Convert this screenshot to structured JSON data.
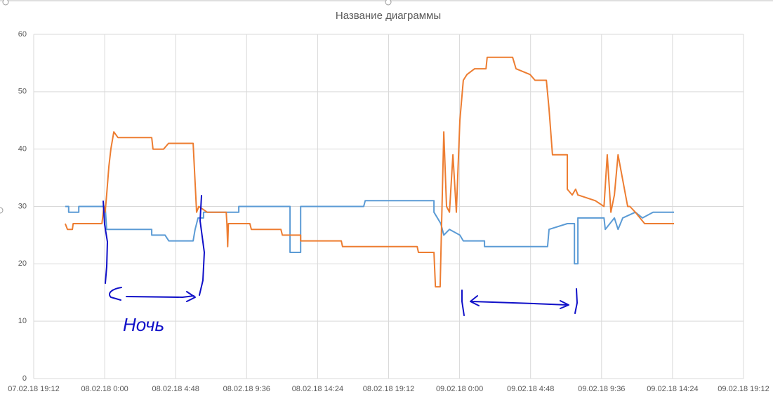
{
  "chart_data": {
    "type": "line",
    "title": "Название диаграммы",
    "xlim": [
      "07.02.18 19:12",
      "09.02.18 19:12"
    ],
    "xticks": [
      "07.02.18 19:12",
      "08.02.18 0:00",
      "08.02.18 4:48",
      "08.02.18 9:36",
      "08.02.18 14:24",
      "08.02.18 19:12",
      "09.02.18 0:00",
      "09.02.18 4:48",
      "09.02.18 9:36",
      "09.02.18 14:24",
      "09.02.18 19:12"
    ],
    "ylim": [
      0,
      60
    ],
    "yticks": [
      0,
      10,
      20,
      30,
      40,
      50,
      60
    ],
    "grid": true,
    "annotations": [
      "Ночь"
    ],
    "series": [
      {
        "color": "#5b9bd5",
        "x": [
          "07.02.18 21:20",
          "07.02.18 21:34",
          "07.02.18 21:34",
          "07.02.18 22:15",
          "07.02.18 22:15",
          "08.02.18 0:02",
          "08.02.18 0:08",
          "08.02.18 3:11",
          "08.02.18 3:11",
          "08.02.18 4:05",
          "08.02.18 4:20",
          "08.02.18 5:59",
          "08.02.18 6:07",
          "08.02.18 6:19",
          "08.02.18 6:41",
          "08.02.18 6:41",
          "08.02.18 9:04",
          "08.02.18 9:04",
          "08.02.18 12:32",
          "08.02.18 12:32",
          "08.02.18 13:15",
          "08.02.18 13:15",
          "08.02.18 17:31",
          "08.02.18 17:37",
          "08.02.18 22:16",
          "08.02.18 22:16",
          "08.02.18 22:44",
          "08.02.18 22:56",
          "08.02.18 23:19",
          "09.02.18 0:01",
          "09.02.18 0:15",
          "09.02.18 1:41",
          "09.02.18 1:41",
          "09.02.18 5:57",
          "09.02.18 6:03",
          "09.02.18 7:17",
          "09.02.18 7:46",
          "09.02.18 7:46",
          "09.02.18 8:00",
          "09.02.18 8:00",
          "09.02.18 9:46",
          "09.02.18 9:51",
          "09.02.18 10:28",
          "09.02.18 10:43",
          "09.02.18 11:02",
          "09.02.18 11:53",
          "09.02.18 12:22",
          "09.02.18 13:05",
          "09.02.18 14:30"
        ],
        "values": [
          30,
          30,
          29,
          29,
          30,
          30,
          26,
          26,
          25,
          25,
          24,
          24,
          26,
          28,
          28,
          29,
          29,
          30,
          30,
          22,
          22,
          30,
          30,
          31,
          31,
          29,
          27,
          25,
          26,
          25,
          24,
          24,
          23,
          23,
          26,
          27,
          27,
          20,
          20,
          28,
          28,
          26,
          28,
          26,
          28,
          29,
          28,
          29,
          29
        ]
      },
      {
        "color": "#ed7d31",
        "x": [
          "07.02.18 21:20",
          "07.02.18 21:29",
          "07.02.18 21:49",
          "07.02.18 21:52",
          "07.02.18 23:49",
          "07.02.18 23:57",
          "08.02.18 0:02",
          "08.02.18 0:08",
          "08.02.18 0:17",
          "08.02.18 0:25",
          "08.02.18 0:37",
          "08.02.18 0:54",
          "08.02.18 3:11",
          "08.02.18 3:16",
          "08.02.18 3:59",
          "08.02.18 4:19",
          "08.02.18 5:59",
          "08.02.18 6:13",
          "08.02.18 6:22",
          "08.02.18 6:56",
          "08.02.18 8:13",
          "08.02.18 8:16",
          "08.02.18 8:19",
          "08.02.18 8:22",
          "08.02.18 9:49",
          "08.02.18 9:55",
          "08.02.18 11:55",
          "08.02.18 12:01",
          "08.02.18 13:15",
          "08.02.18 13:15",
          "08.02.18 16:00",
          "08.02.18 16:05",
          "08.02.18 21:08",
          "08.02.18 21:13",
          "08.02.18 22:16",
          "08.02.18 22:22",
          "08.02.18 22:41",
          "08.02.18 22:47",
          "08.02.18 22:56",
          "08.02.18 23:07",
          "08.02.18 23:19",
          "08.02.18 23:33",
          "08.02.18 23:47",
          "09.02.18 0:01",
          "09.02.18 0:15",
          "09.02.18 0:30",
          "09.02.18 1:01",
          "09.02.18 1:47",
          "09.02.18 1:52",
          "09.02.18 3:35",
          "09.02.18 3:49",
          "09.02.18 4:46",
          "09.02.18 5:06",
          "09.02.18 5:52",
          "09.02.18 6:03",
          "09.02.18 6:17",
          "09.02.18 7:17",
          "09.02.18 7:17",
          "09.02.18 7:37",
          "09.02.18 7:51",
          "09.02.18 8:00",
          "09.02.18 9:11",
          "09.02.18 9:46",
          "09.02.18 9:59",
          "09.02.18 10:14",
          "09.02.18 10:28",
          "09.02.18 10:43",
          "09.02.18 11:22",
          "09.02.18 11:31",
          "09.02.18 11:53",
          "09.02.18 12:31",
          "09.02.18 14:30"
        ],
        "values": [
          27,
          26,
          26,
          27,
          27,
          30,
          29,
          32,
          37,
          40,
          43,
          42,
          42,
          40,
          40,
          41,
          41,
          29,
          30,
          29,
          29,
          27,
          23,
          27,
          27,
          26,
          26,
          25,
          25,
          24,
          24,
          23,
          23,
          22,
          22,
          16,
          16,
          27,
          43,
          30,
          29,
          39,
          29,
          45,
          52,
          53,
          54,
          54,
          56,
          56,
          54,
          53,
          52,
          52,
          47,
          39,
          39,
          33,
          32,
          33,
          32,
          31,
          30,
          39,
          29,
          32,
          39,
          30,
          30,
          29,
          27,
          27
        ]
      }
    ]
  }
}
